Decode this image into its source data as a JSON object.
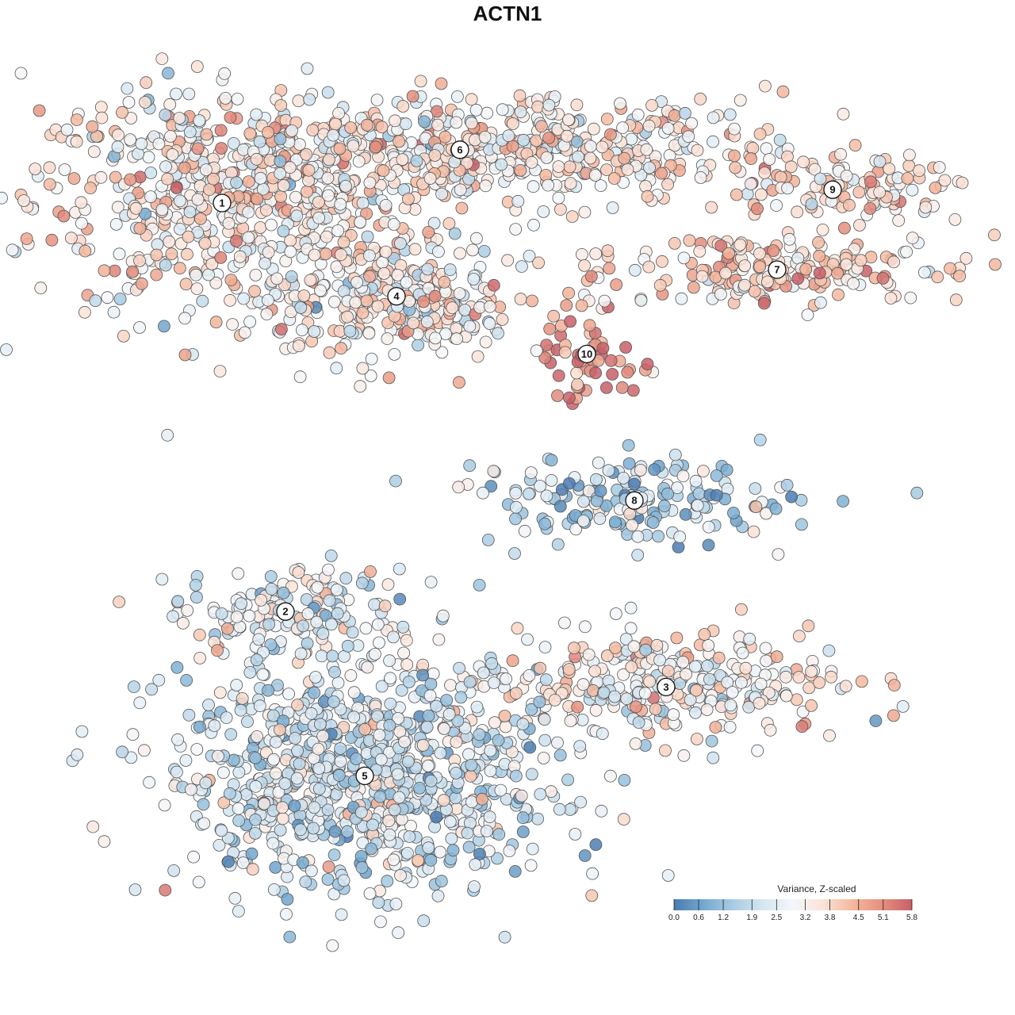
{
  "title": "ACTN1",
  "chart_data": {
    "type": "scatter",
    "title": "ACTN1",
    "xlabel": "",
    "ylabel": "",
    "grid": false,
    "colorbar": {
      "title": "Variance, Z-scaled",
      "ticks": [
        "0.0",
        "0.6",
        "1.2",
        "1.9",
        "2.5",
        "3.2",
        "3.8",
        "4.5",
        "5.1",
        "5.8"
      ],
      "range": [
        0.0,
        5.8
      ],
      "colors": [
        "#4a7bb0",
        "#74a9cf",
        "#a9cce3",
        "#d6e6f1",
        "#f4f7fa",
        "#fbe3d8",
        "#f4b89e",
        "#e5907e",
        "#c85f68"
      ],
      "placement": "bottom-right"
    },
    "clusters": [
      {
        "label": "1",
        "x": 0.1,
        "y": 0.65,
        "spread": [
          0.12,
          0.13
        ],
        "n": 520,
        "mean": 3.3
      },
      {
        "label": "2",
        "x": 0.18,
        "y": -0.27,
        "spread": [
          0.07,
          0.055
        ],
        "n": 160,
        "mean": 2.6
      },
      {
        "label": "3",
        "x": 0.66,
        "y": -0.44,
        "spread": [
          0.11,
          0.06
        ],
        "n": 320,
        "mean": 3.1
      },
      {
        "label": "4",
        "x": 0.32,
        "y": 0.44,
        "spread": [
          0.075,
          0.075
        ],
        "n": 300,
        "mean": 3.2
      },
      {
        "label": "5",
        "x": 0.28,
        "y": -0.64,
        "spread": [
          0.12,
          0.13
        ],
        "n": 900,
        "mean": 2.2
      },
      {
        "label": "6",
        "x": 0.4,
        "y": 0.77,
        "spread": [
          0.2,
          0.06
        ],
        "n": 600,
        "mean": 3.3
      },
      {
        "label": "7",
        "x": 0.8,
        "y": 0.5,
        "spread": [
          0.13,
          0.04
        ],
        "n": 200,
        "mean": 3.9
      },
      {
        "label": "8",
        "x": 0.62,
        "y": -0.02,
        "spread": [
          0.1,
          0.05
        ],
        "n": 180,
        "mean": 1.7
      },
      {
        "label": "9",
        "x": 0.87,
        "y": 0.68,
        "spread": [
          0.09,
          0.04
        ],
        "n": 110,
        "mean": 3.6
      },
      {
        "label": "10",
        "x": 0.56,
        "y": 0.31,
        "spread": [
          0.035,
          0.05
        ],
        "n": 60,
        "mean": 4.9
      }
    ]
  }
}
